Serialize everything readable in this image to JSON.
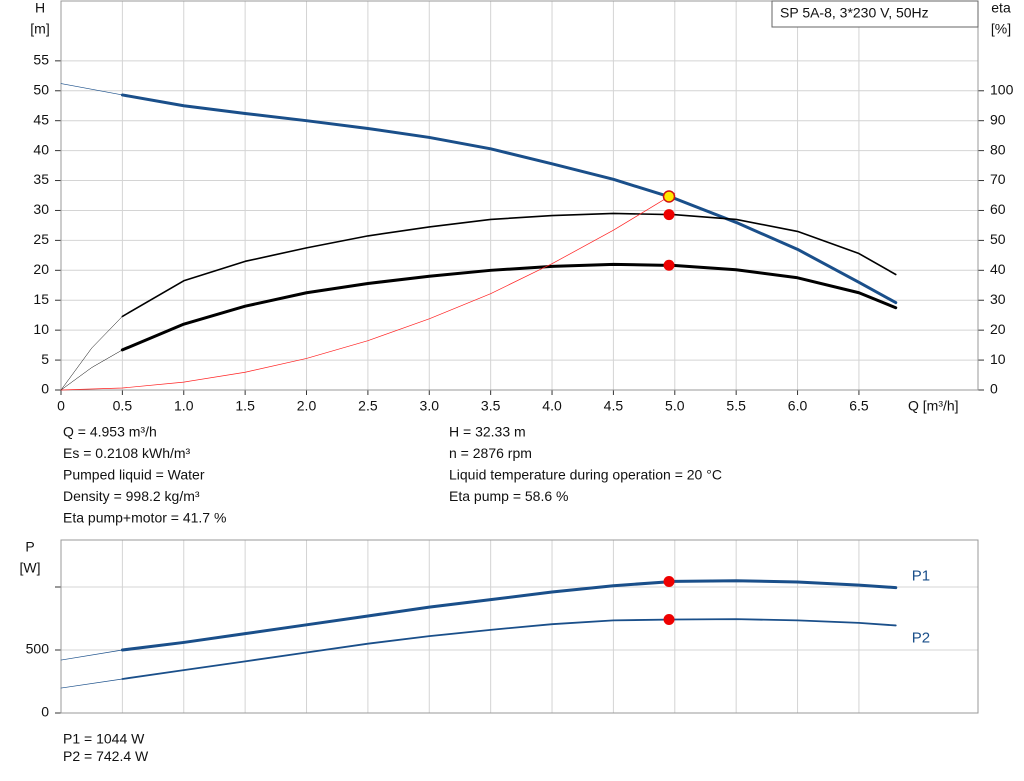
{
  "chart_data": [
    {
      "type": "line",
      "title": "SP 5A-8, 3*230 V, 50Hz",
      "x_label": "Q [m³/h]",
      "y_label": "H",
      "y_unit": "[m]",
      "y2_label": "eta",
      "y2_unit": "[%]",
      "xlim": [
        0,
        7.47
      ],
      "ylim": [
        0,
        65
      ],
      "y2lim": [
        0,
        130
      ],
      "grid": true,
      "xticks": [
        0,
        0.5,
        {
          "value": 1,
          "label": "1.0"
        },
        1.5,
        {
          "value": 2,
          "label": "2.0"
        },
        2.5,
        {
          "value": 3,
          "label": "3.0"
        },
        3.5,
        {
          "value": 4,
          "label": "4.0"
        },
        4.5,
        {
          "value": 5,
          "label": "5.0"
        },
        5.5,
        {
          "value": 6,
          "label": "6.0"
        },
        6.5
      ],
      "yticks": [
        0,
        5,
        10,
        15,
        20,
        25,
        30,
        35,
        40,
        45,
        50,
        55
      ],
      "y2ticks": [
        0,
        10,
        20,
        30,
        40,
        50,
        60,
        70,
        80,
        90,
        100
      ],
      "series": [
        {
          "color": "#1a4f8a",
          "width": 0.7,
          "x": [
            0,
            0.5
          ],
          "values": [
            51.2,
            49.3
          ]
        },
        {
          "color": "#1a4f8a",
          "width": 3,
          "x": [
            0.5,
            1,
            1.5,
            2,
            2.5,
            3,
            3.5,
            4,
            4.5,
            5,
            5.5,
            6,
            6.5,
            6.8
          ],
          "values": [
            49.3,
            47.5,
            46.2,
            45,
            43.7,
            42.2,
            40.3,
            37.8,
            35.2,
            32,
            28,
            23.5,
            18,
            14.6
          ]
        },
        {
          "color": "#000000",
          "width": 0.5,
          "axis": "y2",
          "x": [
            0,
            0.25,
            0.5
          ],
          "values": [
            0,
            14,
            24.6
          ]
        },
        {
          "color": "#000000",
          "width": 1.6,
          "axis": "y2",
          "x": [
            0.5,
            1,
            1.5,
            2,
            2.5,
            3,
            3.5,
            4,
            4.5,
            5,
            5.5,
            6,
            6.5,
            6.8
          ],
          "values": [
            24.6,
            36.5,
            43,
            47.5,
            51.5,
            54.5,
            57,
            58.3,
            59,
            58.6,
            57,
            53,
            45.6,
            38.6
          ]
        },
        {
          "color": "#000000",
          "width": 0.5,
          "axis": "y2",
          "x": [
            0,
            0.25,
            0.5
          ],
          "values": [
            0,
            7.5,
            13.4
          ]
        },
        {
          "color": "#000000",
          "width": 3,
          "axis": "y2",
          "x": [
            0.5,
            1,
            1.5,
            2,
            2.5,
            3,
            3.5,
            4,
            4.5,
            5,
            5.5,
            6,
            6.5,
            6.8
          ],
          "values": [
            13.4,
            22,
            28,
            32.5,
            35.6,
            38,
            40,
            41.3,
            42,
            41.6,
            40.2,
            37.5,
            32.5,
            27.5
          ]
        },
        {
          "color": "#ff2020",
          "width": 0.7,
          "x": [
            0,
            0.5,
            1,
            1.5,
            2,
            2.5,
            3,
            3.5,
            4,
            4.5,
            5
          ],
          "values": [
            0,
            0.33,
            1.32,
            2.97,
            5.27,
            8.24,
            11.9,
            16.1,
            21.1,
            26.7,
            32.9
          ]
        }
      ],
      "markers": [
        {
          "x": 4.953,
          "value": 32.33,
          "color": "#ffe800"
        },
        {
          "x": 4.953,
          "value": 58.6,
          "color": "#ee0000",
          "axis": "y2"
        },
        {
          "x": 4.953,
          "value": 41.7,
          "color": "#ee0000",
          "axis": "y2"
        }
      ],
      "info_left": [
        "Q = 4.953 m³/h",
        "Es = 0.2108 kWh/m³",
        "Pumped liquid = Water",
        "Density = 998.2 kg/m³",
        "Eta pump+motor = 41.7 %"
      ],
      "info_right": [
        "H = 32.33 m",
        "n = 2876 rpm",
        "Liquid temperature during operation = 20 °C",
        "Eta pump = 58.6 %"
      ]
    },
    {
      "type": "line",
      "y_label": "P",
      "y_unit": "[W]",
      "xlim": [
        0,
        7.47
      ],
      "ylim": [
        0,
        1373
      ],
      "grid": true,
      "xtick_labels": false,
      "xticks": [
        0,
        0.5,
        1,
        1.5,
        2,
        2.5,
        3,
        3.5,
        4,
        4.5,
        5,
        5.5,
        6,
        6.5
      ],
      "yticks": [
        0,
        500
      ],
      "y_unlabeled_ticks": [
        1000
      ],
      "series": [
        {
          "color": "#1a4f8a",
          "width": 0.7,
          "x": [
            0,
            0.5
          ],
          "values": [
            420,
            500
          ]
        },
        {
          "name": "P1",
          "color": "#1a4f8a",
          "width": 3,
          "x": [
            0.5,
            1,
            1.5,
            2,
            2.5,
            3,
            3.5,
            4,
            4.5,
            5,
            5.5,
            6,
            6.5,
            6.8
          ],
          "values": [
            500,
            560,
            630,
            700,
            770,
            840,
            900,
            960,
            1010,
            1045,
            1050,
            1040,
            1015,
            995
          ]
        },
        {
          "color": "#1a4f8a",
          "width": 0.7,
          "x": [
            0,
            0.5
          ],
          "values": [
            198,
            270
          ]
        },
        {
          "name": "P2",
          "color": "#1a4f8a",
          "width": 1.8,
          "x": [
            0.5,
            1,
            1.5,
            2,
            2.5,
            3,
            3.5,
            4,
            4.5,
            5,
            5.5,
            6,
            6.5,
            6.8
          ],
          "values": [
            270,
            340,
            410,
            480,
            550,
            610,
            660,
            705,
            735,
            742,
            745,
            735,
            715,
            695
          ]
        }
      ],
      "markers": [
        {
          "x": 4.953,
          "value": 1044,
          "color": "#ee0000"
        },
        {
          "x": 4.953,
          "value": 742.4,
          "color": "#ee0000"
        }
      ],
      "info_left": [
        "P1 = 1044 W",
        "P2 = 742.4 W"
      ]
    }
  ]
}
